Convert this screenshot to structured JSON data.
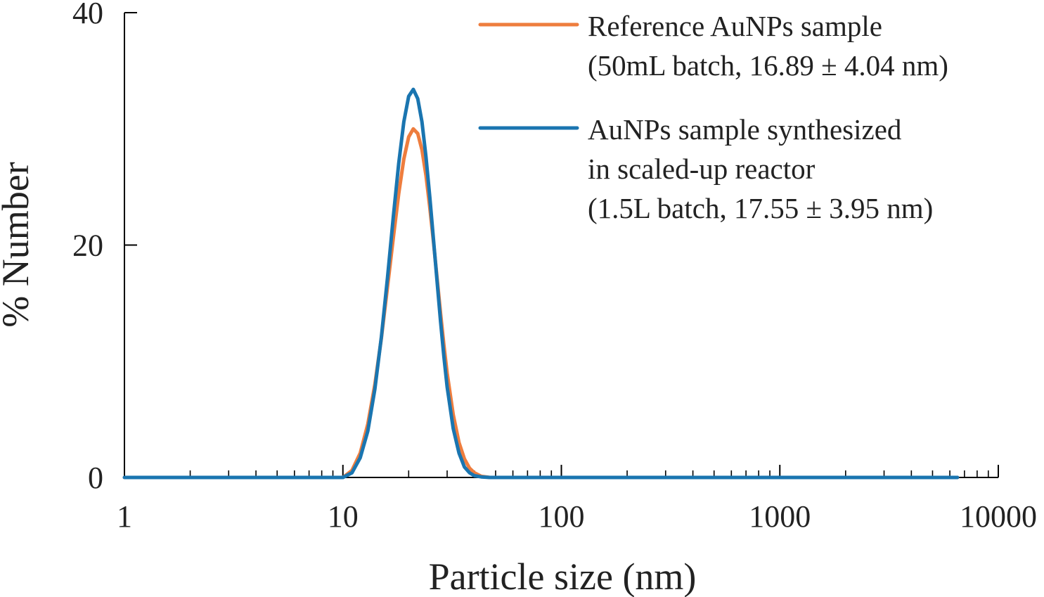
{
  "chart_data": {
    "type": "line",
    "title": "",
    "xlabel": "Particle size (nm)",
    "ylabel": "% Number",
    "x_scale": "log",
    "xlim": [
      1,
      10000
    ],
    "ylim": [
      0,
      40
    ],
    "x_ticks": [
      {
        "value": 1,
        "label": "1"
      },
      {
        "value": 10,
        "label": "10"
      },
      {
        "value": 100,
        "label": "100"
      },
      {
        "value": 1000,
        "label": "1000"
      },
      {
        "value": 10000,
        "label": "10000"
      }
    ],
    "y_ticks": [
      {
        "value": 0,
        "label": "0"
      },
      {
        "value": 20,
        "label": "20"
      },
      {
        "value": 40,
        "label": "40"
      }
    ],
    "grid": false,
    "legend_position": "top-right",
    "series": [
      {
        "name": "Reference AuNPs sample (50mL batch, 16.89 ± 4.04 nm)",
        "legend_lines": [
          "Reference AuNPs sample",
          "(50mL batch, 16.89 ± 4.04 nm)"
        ],
        "color": "#ee7d3e",
        "x": [
          1,
          5,
          9.5,
          10,
          11,
          12,
          13,
          14,
          15,
          16,
          17,
          18,
          19,
          20,
          21,
          22,
          23,
          24,
          25,
          26,
          27,
          28,
          29,
          30,
          32,
          34,
          36,
          38,
          40,
          43,
          47,
          100,
          1000,
          6500
        ],
        "y": [
          0,
          0,
          0,
          0,
          0.6,
          2.1,
          4.6,
          8.0,
          12.0,
          16.4,
          20.6,
          24.4,
          27.4,
          29.3,
          30.0,
          29.6,
          28.2,
          26.0,
          23.2,
          20.2,
          17.1,
          14.1,
          11.4,
          9.0,
          5.4,
          3.0,
          1.6,
          0.8,
          0.4,
          0.1,
          0,
          0,
          0,
          0
        ]
      },
      {
        "name": "AuNPs sample synthesized in scaled-up reactor (1.5L batch, 17.55 ± 3.95 nm)",
        "legend_lines": [
          "AuNPs sample synthesized",
          "in scaled-up reactor",
          "(1.5L batch, 17.55 ± 3.95 nm)"
        ],
        "color": "#1a75b0",
        "x": [
          1,
          5,
          10,
          11,
          12,
          13,
          14,
          15,
          16,
          17,
          18,
          19,
          20,
          21,
          22,
          23,
          24,
          25,
          26,
          27,
          28,
          29,
          30,
          32,
          34,
          36,
          38,
          40,
          43,
          47,
          100,
          1000,
          6500
        ],
        "y": [
          0,
          0,
          0,
          0.4,
          1.7,
          4.0,
          7.6,
          12.1,
          17.2,
          22.4,
          27.0,
          30.6,
          32.8,
          33.4,
          32.6,
          30.6,
          27.6,
          24.1,
          20.4,
          16.8,
          13.4,
          10.4,
          7.8,
          4.2,
          2.1,
          0.9,
          0.4,
          0.15,
          0.05,
          0,
          0,
          0,
          0
        ]
      }
    ]
  }
}
